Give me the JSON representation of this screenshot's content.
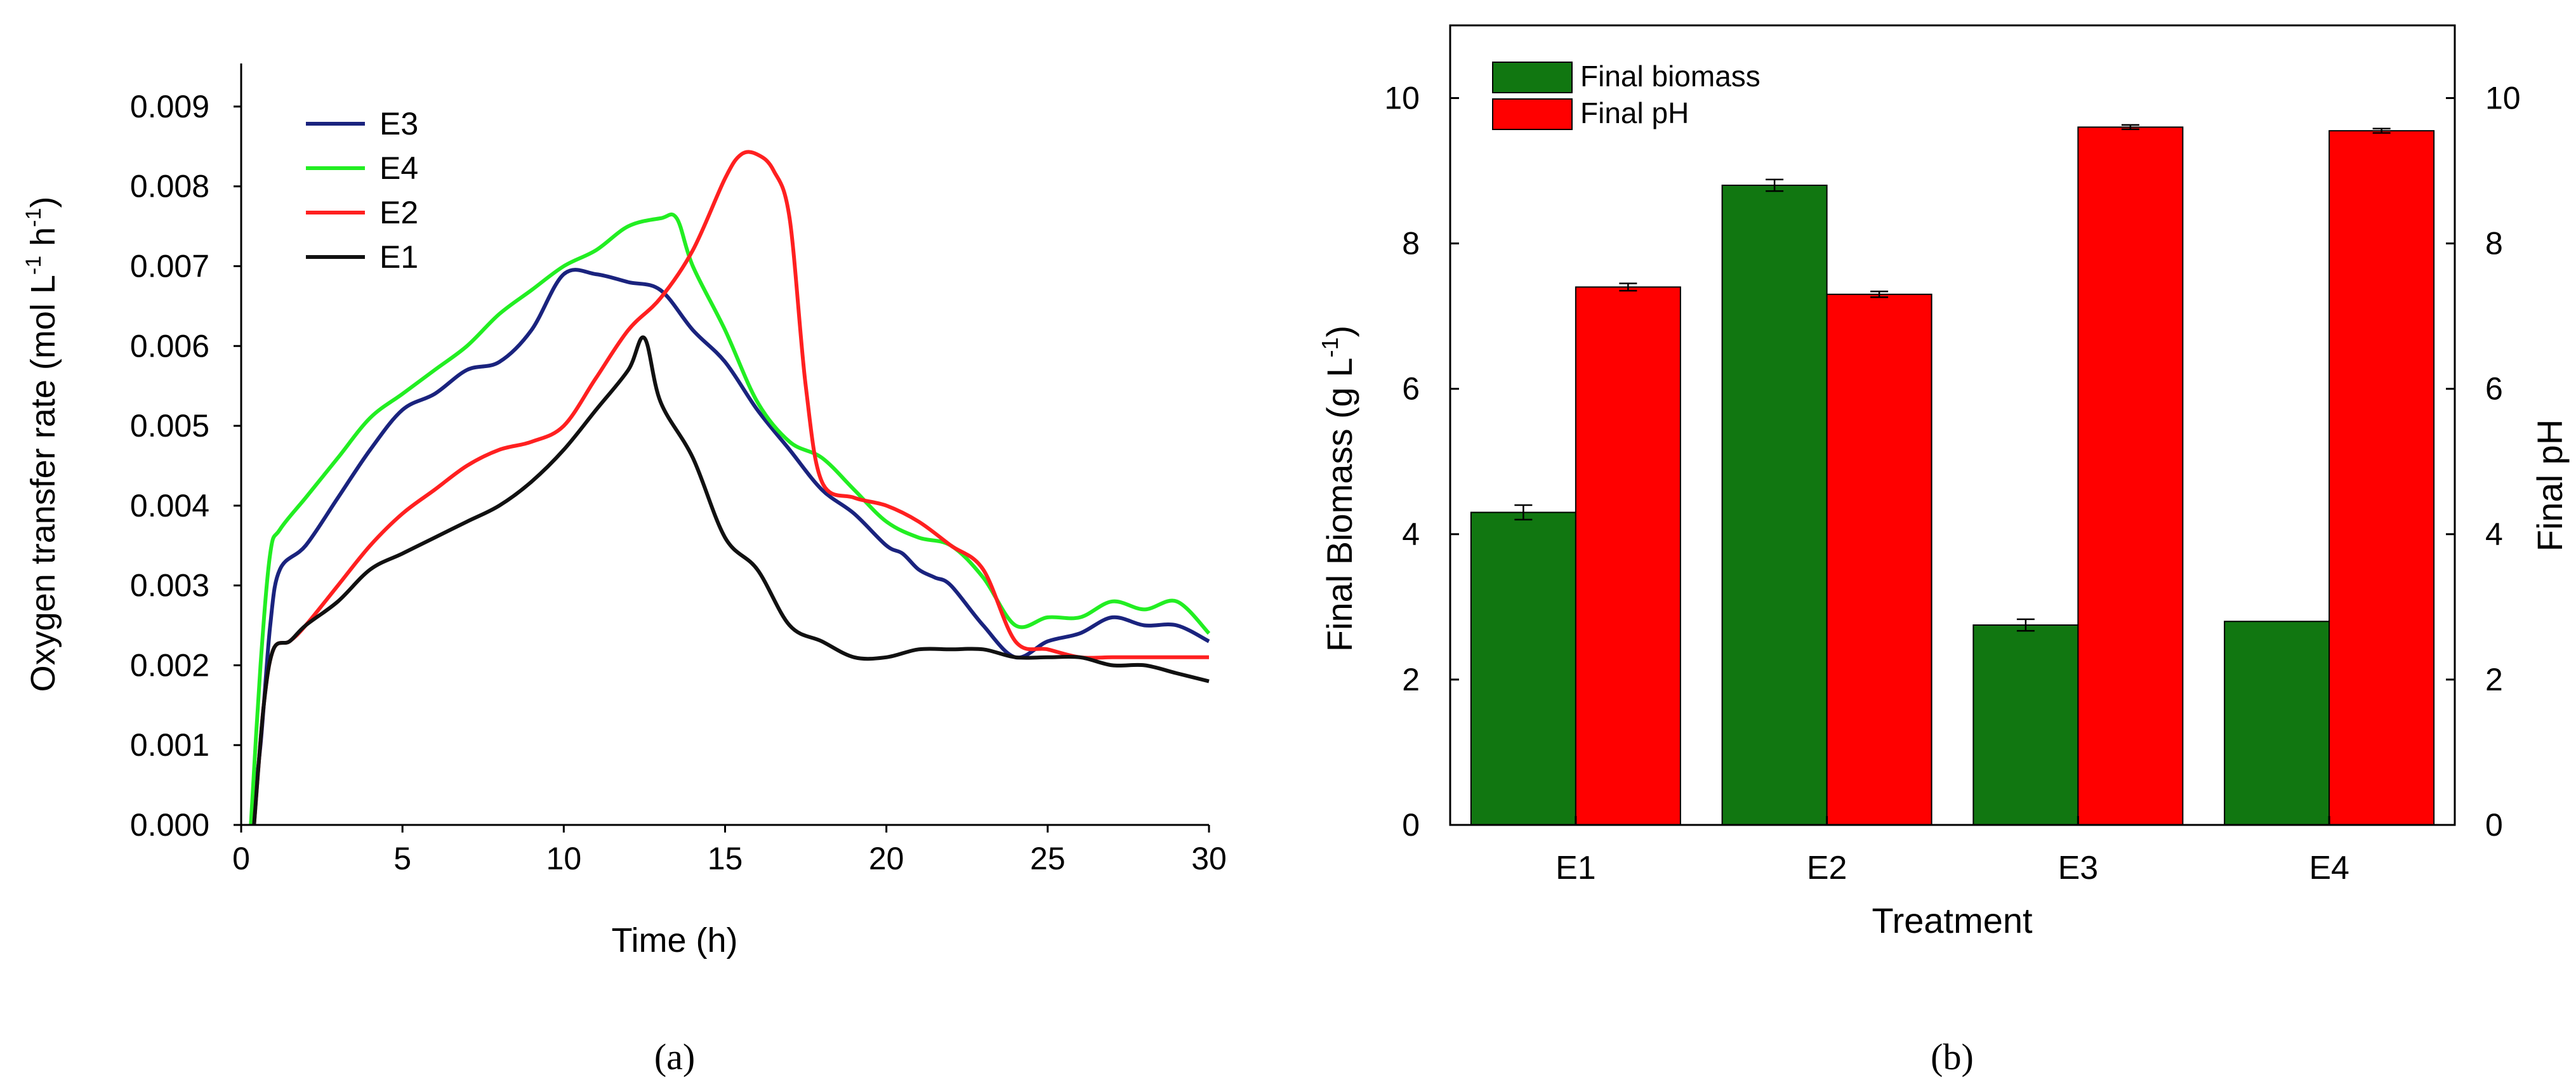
{
  "chart_data": [
    {
      "panel": "(a)",
      "type": "line",
      "title": "",
      "xlabel": "Time (h)",
      "ylabel": "Oxygen transfer rate (mol L-1 h-1)",
      "ylabel_parts": {
        "main": "Oxygen transfer rate (mol L",
        "sup1": "-1",
        "mid": " h",
        "sup2": "-1",
        "end": ")"
      },
      "xlim": [
        0,
        30
      ],
      "ylim": [
        0,
        0.0095
      ],
      "xticks": [
        "0",
        "5",
        "10",
        "15",
        "20",
        "25",
        "30"
      ],
      "yticks": [
        "0.000",
        "0.001",
        "0.002",
        "0.003",
        "0.004",
        "0.005",
        "0.006",
        "0.007",
        "0.008",
        "0.009"
      ],
      "grid": false,
      "legend_position": "top-left",
      "legend_order": [
        "E3",
        "E4",
        "E2",
        "E1"
      ],
      "series": [
        {
          "name": "E3",
          "color": "#1a237e",
          "x": [
            0.3,
            0.6,
            0.9,
            1.2,
            2,
            3,
            4,
            5,
            6,
            7,
            8,
            9,
            10,
            11,
            12,
            13,
            14,
            15,
            16,
            17,
            18,
            19,
            20,
            20.5,
            21,
            21.5,
            22,
            23,
            24,
            25,
            26,
            27,
            28,
            29,
            30
          ],
          "y": [
            0.0,
            0.001,
            0.0025,
            0.0032,
            0.0035,
            0.0041,
            0.0047,
            0.0052,
            0.0054,
            0.0057,
            0.0058,
            0.0062,
            0.0069,
            0.0069,
            0.0068,
            0.0067,
            0.0062,
            0.0058,
            0.0052,
            0.0047,
            0.0042,
            0.0039,
            0.0035,
            0.0034,
            0.0032,
            0.0031,
            0.003,
            0.0025,
            0.0021,
            0.0023,
            0.0024,
            0.0026,
            0.0025,
            0.0025,
            0.0023
          ]
        },
        {
          "name": "E4",
          "color": "#22ee22",
          "x": [
            0.3,
            0.6,
            0.9,
            1.2,
            2,
            3,
            4,
            5,
            6,
            7,
            8,
            9,
            10,
            11,
            12,
            13,
            13.5,
            14,
            15,
            16,
            17,
            18,
            19,
            20,
            21,
            22,
            23,
            24,
            25,
            26,
            27,
            28,
            29,
            30
          ],
          "y": [
            0.0,
            0.002,
            0.0034,
            0.0037,
            0.0041,
            0.0046,
            0.0051,
            0.0054,
            0.0057,
            0.006,
            0.0064,
            0.0067,
            0.007,
            0.0072,
            0.0075,
            0.0076,
            0.0076,
            0.007,
            0.0062,
            0.0053,
            0.0048,
            0.0046,
            0.0042,
            0.0038,
            0.0036,
            0.0035,
            0.0031,
            0.0025,
            0.0026,
            0.0026,
            0.0028,
            0.0027,
            0.0028,
            0.0024
          ]
        },
        {
          "name": "E2",
          "color": "#ff2020",
          "x": [
            0.4,
            0.7,
            1.0,
            1.5,
            2,
            3,
            4,
            5,
            6,
            7,
            8,
            9,
            10,
            11,
            12,
            13,
            14,
            15,
            15.5,
            16,
            16.5,
            17,
            17.5,
            18,
            19,
            20,
            21,
            22,
            23,
            24,
            25,
            26,
            27,
            28,
            29,
            30
          ],
          "y": [
            0.0,
            0.0015,
            0.0022,
            0.0023,
            0.0025,
            0.003,
            0.0035,
            0.0039,
            0.0042,
            0.0045,
            0.0047,
            0.0048,
            0.005,
            0.0056,
            0.0062,
            0.0066,
            0.0072,
            0.0081,
            0.0084,
            0.0084,
            0.0082,
            0.0076,
            0.0055,
            0.0043,
            0.0041,
            0.004,
            0.0038,
            0.0035,
            0.0032,
            0.0023,
            0.0022,
            0.0021,
            0.0021,
            0.0021,
            0.0021,
            0.0021
          ]
        },
        {
          "name": "E1",
          "color": "#111111",
          "x": [
            0.4,
            0.7,
            1.0,
            1.5,
            2,
            3,
            4,
            5,
            6,
            7,
            8,
            9,
            10,
            11,
            12,
            12.5,
            13,
            14,
            15,
            16,
            17,
            18,
            19,
            20,
            21,
            22,
            23,
            24,
            25,
            26,
            27,
            28,
            29,
            30
          ],
          "y": [
            0.0,
            0.0015,
            0.0022,
            0.0023,
            0.0025,
            0.0028,
            0.0032,
            0.0034,
            0.0036,
            0.0038,
            0.004,
            0.0043,
            0.0047,
            0.0052,
            0.0057,
            0.0061,
            0.0053,
            0.0046,
            0.0036,
            0.0032,
            0.0025,
            0.0023,
            0.0021,
            0.0021,
            0.0022,
            0.0022,
            0.0022,
            0.0021,
            0.0021,
            0.0021,
            0.002,
            0.002,
            0.0019,
            0.0018
          ]
        }
      ]
    },
    {
      "panel": "(b)",
      "type": "bar",
      "title": "",
      "xlabel": "Treatment",
      "ylabel": "Final Biomass (g L-1)",
      "ylabel_parts": {
        "main": "Final Biomass (g L",
        "sup": "-1",
        "end": ")"
      },
      "y2label": "Final pH",
      "categories": [
        "E1",
        "E2",
        "E3",
        "E4"
      ],
      "ylim": [
        0,
        11
      ],
      "y2lim": [
        0,
        11
      ],
      "yticks": [
        "0",
        "2",
        "4",
        "6",
        "8",
        "10"
      ],
      "y2ticks": [
        "0",
        "2",
        "4",
        "6",
        "8",
        "10"
      ],
      "grid": false,
      "legend_position": "top-left",
      "series": [
        {
          "name": "Final biomass",
          "color": "#117711",
          "axis": "left",
          "values": [
            4.3,
            8.8,
            2.75,
            2.8
          ],
          "errors": [
            0.1,
            0.08,
            0.08,
            0.0
          ]
        },
        {
          "name": "Final pH",
          "color": "#ff0000",
          "axis": "right",
          "values": [
            7.4,
            7.3,
            9.6,
            9.55
          ],
          "errors": [
            0.05,
            0.04,
            0.03,
            0.03
          ]
        }
      ]
    }
  ]
}
